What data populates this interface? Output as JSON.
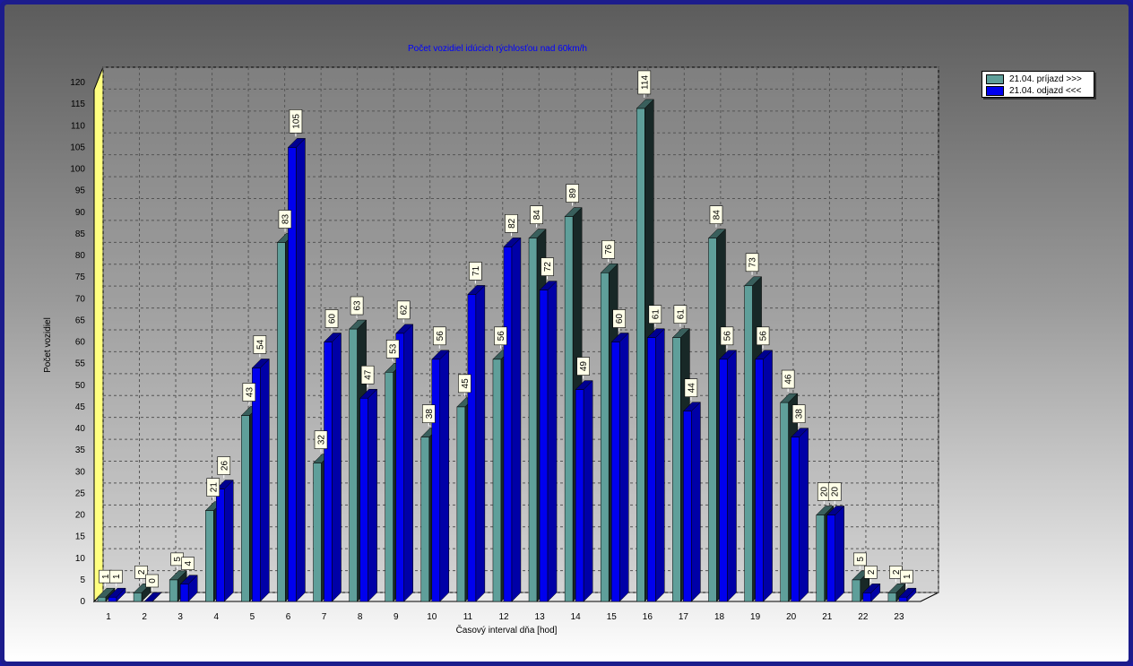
{
  "chart_data": {
    "type": "bar",
    "title": "Počet vozidiel idúcich rýchlosťou nad 60km/h",
    "xlabel": "Časový interval dňa [hod]",
    "ylabel": "Počet vozidiel",
    "ylim": [
      0,
      120
    ],
    "y_ticks": [
      0,
      5,
      10,
      15,
      20,
      25,
      30,
      35,
      40,
      45,
      50,
      55,
      60,
      65,
      70,
      75,
      80,
      85,
      90,
      95,
      100,
      105,
      110,
      115,
      120
    ],
    "categories": [
      "1",
      "2",
      "3",
      "4",
      "5",
      "6",
      "7",
      "8",
      "9",
      "10",
      "11",
      "12",
      "13",
      "14",
      "15",
      "16",
      "17",
      "18",
      "19",
      "20",
      "21",
      "22",
      "23"
    ],
    "series": [
      {
        "name": "21.04.  príjazd >>>",
        "color": "#5f9f9a",
        "values": [
          1,
          2,
          5,
          21,
          43,
          83,
          32,
          63,
          53,
          38,
          45,
          56,
          84,
          89,
          76,
          114,
          61,
          84,
          73,
          46,
          20,
          5,
          2
        ]
      },
      {
        "name": "21.04.  odjazd <<<",
        "color": "#0000ee",
        "values": [
          1,
          0,
          4,
          26,
          54,
          105,
          60,
          47,
          62,
          56,
          71,
          82,
          72,
          49,
          60,
          61,
          44,
          56,
          56,
          38,
          20,
          2,
          1
        ]
      }
    ],
    "grid": true,
    "legend_position": "top-right"
  }
}
